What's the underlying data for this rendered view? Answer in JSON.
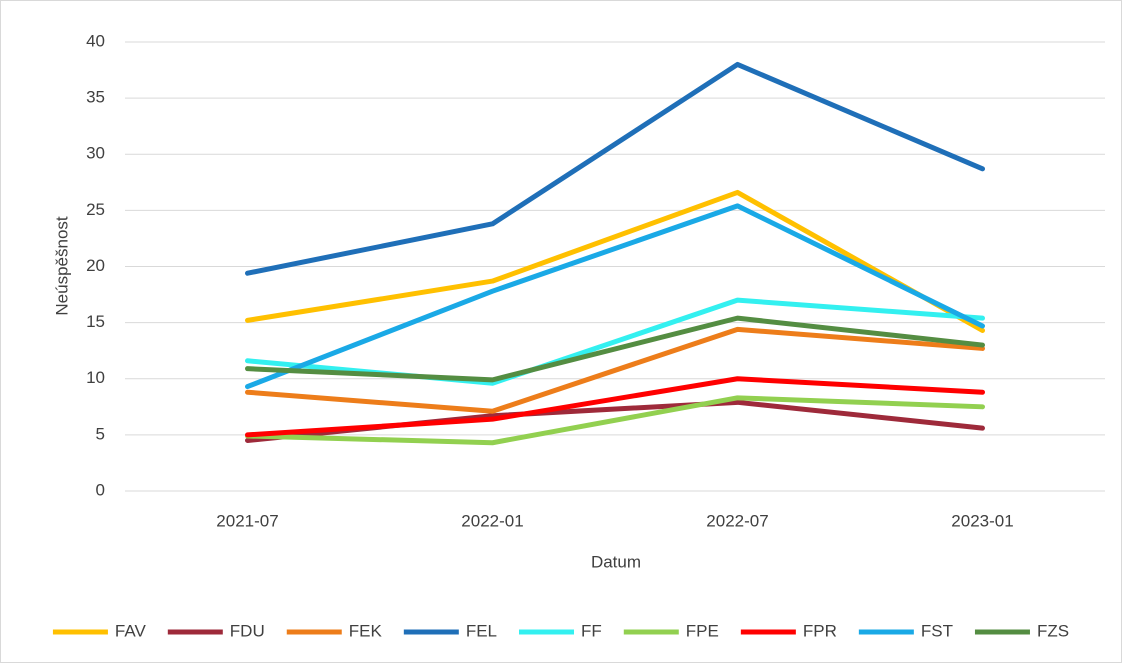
{
  "chart_data": {
    "type": "line",
    "xlabel": "Datum",
    "ylabel": "Neúspěšnost",
    "categories": [
      "2021-07",
      "2022-01",
      "2022-07",
      "2023-01"
    ],
    "ylim": [
      0,
      40
    ],
    "yticks": [
      0,
      5,
      10,
      15,
      20,
      25,
      30,
      35,
      40
    ],
    "grid": true,
    "legend": "bottom",
    "series": [
      {
        "name": "FAV",
        "color": "#FFC000",
        "values": [
          15.2,
          18.7,
          26.6,
          14.3
        ]
      },
      {
        "name": "FDU",
        "color": "#9E2A3A",
        "values": [
          4.5,
          6.7,
          7.9,
          5.6
        ]
      },
      {
        "name": "FEK",
        "color": "#ED7D1A",
        "values": [
          8.8,
          7.1,
          14.4,
          12.7
        ]
      },
      {
        "name": "FEL",
        "color": "#1F6FB8",
        "values": [
          19.4,
          23.8,
          38.0,
          28.7
        ]
      },
      {
        "name": "FF",
        "color": "#33F0F0",
        "values": [
          11.6,
          9.6,
          17.0,
          15.4
        ]
      },
      {
        "name": "FPE",
        "color": "#92D050",
        "values": [
          4.9,
          4.3,
          8.3,
          7.5
        ]
      },
      {
        "name": "FPR",
        "color": "#FF0000",
        "values": [
          5.0,
          6.4,
          10.0,
          8.8
        ]
      },
      {
        "name": "FST",
        "color": "#1AA9E6",
        "values": [
          9.3,
          17.8,
          25.4,
          14.7
        ]
      },
      {
        "name": "FZS",
        "color": "#548D42",
        "values": [
          10.9,
          9.9,
          15.4,
          13.0
        ]
      }
    ]
  }
}
